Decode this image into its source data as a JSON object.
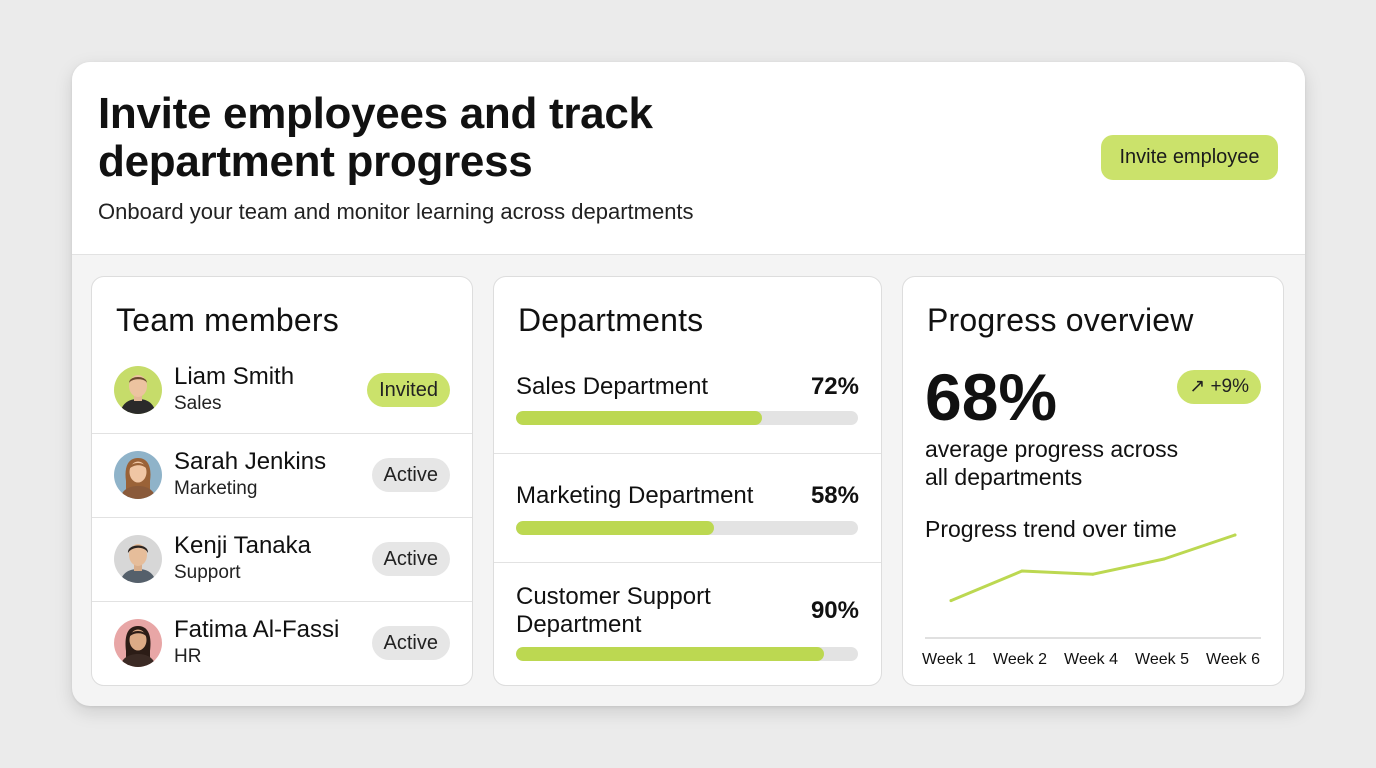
{
  "header": {
    "title": "Invite employees and track department progress",
    "subtitle": "Onboard your team and monitor learning across departments",
    "invite_button": "Invite employee"
  },
  "team": {
    "title": "Team members",
    "members": [
      {
        "name": "Liam Smith",
        "department": "Sales",
        "status": "Invited",
        "avatar": "avatar-man-short-hair"
      },
      {
        "name": "Sarah Jenkins",
        "department": "Marketing",
        "status": "Active",
        "avatar": "avatar-woman-long-hair"
      },
      {
        "name": "Kenji Tanaka",
        "department": "Support",
        "status": "Active",
        "avatar": "avatar-man-dark-hair"
      },
      {
        "name": "Fatima Al-Fassi",
        "department": "HR",
        "status": "Active",
        "avatar": "avatar-woman-dark-hair"
      }
    ]
  },
  "departments": {
    "title": "Departments",
    "items": [
      {
        "name": "Sales Department",
        "percent_label": "72%",
        "progress": 0.72
      },
      {
        "name": "Marketing Department",
        "percent_label": "58%",
        "progress": 0.58
      },
      {
        "name": "Customer Support Department",
        "percent_label": "90%",
        "progress": 0.9
      }
    ]
  },
  "progress": {
    "title": "Progress overview",
    "average_percent": "68%",
    "change": "+9%",
    "change_icon": "arrow-up-right-icon",
    "average_label": "average progress across all departments",
    "trend_title": "Progress trend over time",
    "trend_axis": [
      "Week 1",
      "Week 2",
      "Week 4",
      "Week 5",
      "Week 6"
    ],
    "trend_values": [
      0.18,
      0.55,
      0.51,
      0.7,
      1.0
    ]
  },
  "colors": {
    "accent": "#cbe26b",
    "bar_fill": "#bcd851",
    "line": "#bcd851",
    "chip_neutral": "#e6e6e6"
  }
}
